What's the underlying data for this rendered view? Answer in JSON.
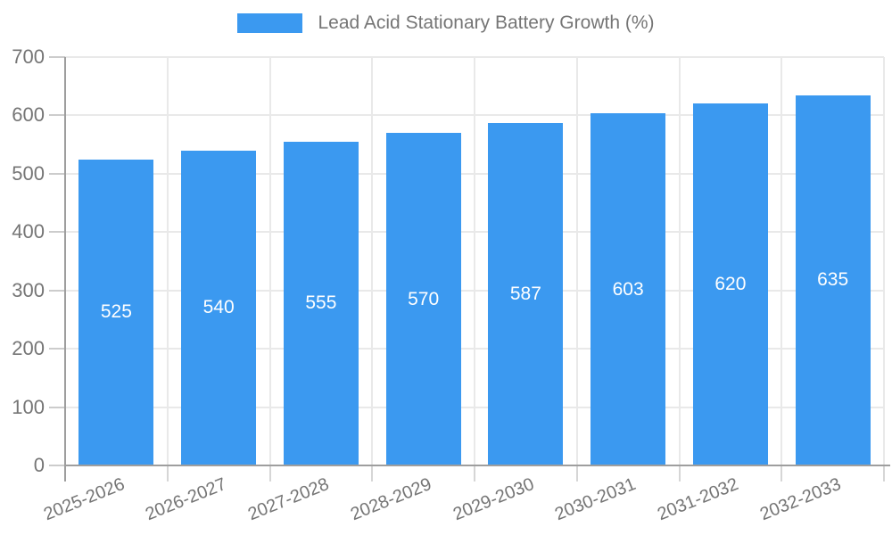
{
  "chart_data": {
    "type": "bar",
    "title": "Lead Acid Stationary Battery Growth (%)",
    "categories": [
      "2025-2026",
      "2026-2027",
      "2027-2028",
      "2028-2029",
      "2029-2030",
      "2030-2031",
      "2031-2032",
      "2032-2033"
    ],
    "values": [
      525,
      540,
      555,
      570,
      587,
      603,
      620,
      635
    ],
    "value_labels": [
      "525",
      "540",
      "555",
      "570",
      "587",
      "603",
      "620",
      "635"
    ],
    "xlabel": "",
    "ylabel": "",
    "ylim": [
      0,
      700
    ],
    "y_ticks": [
      "0",
      "100",
      "200",
      "300",
      "400",
      "500",
      "600",
      "700"
    ],
    "legend_position": "top",
    "grid": true,
    "x_label_rotation_deg": -22,
    "colors": {
      "bar": "#3b99f0",
      "value_label": "#ffffff",
      "axis_text": "#757575",
      "axis_line": "#9e9e9e",
      "gridline": "#e9e9e9"
    }
  }
}
